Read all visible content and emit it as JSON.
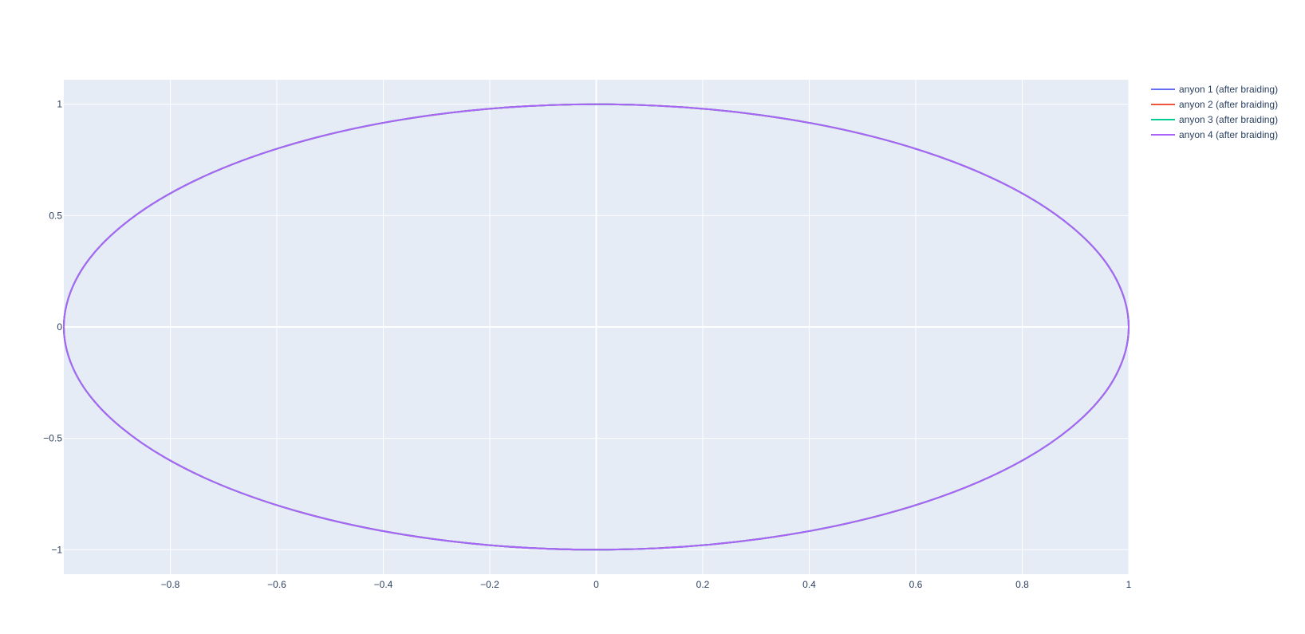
{
  "chart_data": {
    "type": "line",
    "title": "",
    "xlabel": "",
    "ylabel": "",
    "xlim": [
      -1,
      1
    ],
    "ylim": [
      -1.11,
      1.11
    ],
    "grid": true,
    "legend_position": "top-right (outside plot)",
    "x_ticks": [
      {
        "value": -0.8,
        "label": "−0.8"
      },
      {
        "value": -0.6,
        "label": "−0.6"
      },
      {
        "value": -0.4,
        "label": "−0.4"
      },
      {
        "value": -0.2,
        "label": "−0.2"
      },
      {
        "value": 0,
        "label": "0"
      },
      {
        "value": 0.2,
        "label": "0.2"
      },
      {
        "value": 0.4,
        "label": "0.4"
      },
      {
        "value": 0.6,
        "label": "0.6"
      },
      {
        "value": 0.8,
        "label": "0.8"
      },
      {
        "value": 1,
        "label": "1"
      }
    ],
    "y_ticks": [
      {
        "value": 1,
        "label": "1"
      },
      {
        "value": 0.5,
        "label": "0.5"
      },
      {
        "value": 0,
        "label": "0"
      },
      {
        "value": -0.5,
        "label": "−0.5"
      },
      {
        "value": -1,
        "label": "−1"
      }
    ],
    "x": [
      1,
      0.9511,
      0.809,
      0.5878,
      0.309,
      0,
      -0.309,
      -0.5878,
      -0.809,
      -0.9511,
      -1,
      -0.9511,
      -0.809,
      -0.5878,
      -0.309,
      0,
      0.309,
      0.5878,
      0.809,
      0.9511,
      1
    ],
    "series": [
      {
        "name": "anyon 1 (after braiding)",
        "color": "#636efa",
        "y": [
          0,
          0.309,
          0.5878,
          0.809,
          0.9511,
          1,
          0.9511,
          0.809,
          0.5878,
          0.309,
          0,
          -0.309,
          -0.5878,
          -0.809,
          -0.9511,
          -1,
          -0.9511,
          -0.809,
          -0.5878,
          -0.309,
          0
        ]
      },
      {
        "name": "anyon 2 (after braiding)",
        "color": "#EF553B",
        "y": [
          0,
          0.309,
          0.5878,
          0.809,
          0.9511,
          1,
          0.9511,
          0.809,
          0.5878,
          0.309,
          0,
          -0.309,
          -0.5878,
          -0.809,
          -0.9511,
          -1,
          -0.9511,
          -0.809,
          -0.5878,
          -0.309,
          0
        ]
      },
      {
        "name": "anyon 3 (after braiding)",
        "color": "#00cc96",
        "y": [
          0,
          0.309,
          0.5878,
          0.809,
          0.9511,
          1,
          0.9511,
          0.809,
          0.5878,
          0.309,
          0,
          -0.309,
          -0.5878,
          -0.809,
          -0.9511,
          -1,
          -0.9511,
          -0.809,
          -0.5878,
          -0.309,
          0
        ]
      },
      {
        "name": "anyon 4 (after braiding)",
        "color": "#ab63fa",
        "y": [
          0,
          0.309,
          0.5878,
          0.809,
          0.9511,
          1,
          0.9511,
          0.809,
          0.5878,
          0.309,
          0,
          -0.309,
          -0.5878,
          -0.809,
          -0.9511,
          -1,
          -0.9511,
          -0.809,
          -0.5878,
          -0.309,
          0
        ]
      }
    ]
  }
}
